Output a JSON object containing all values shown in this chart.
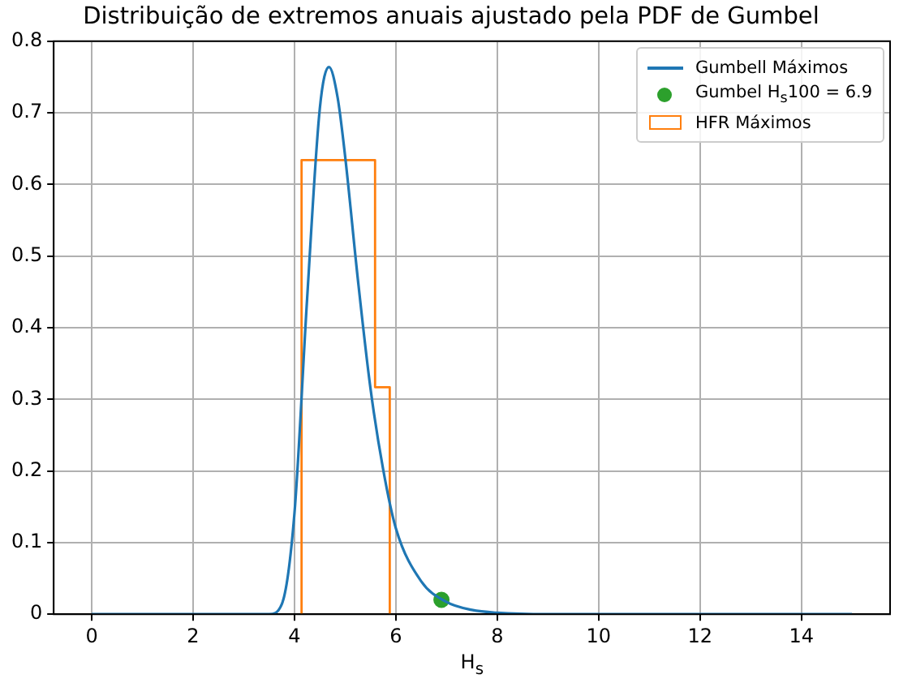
{
  "chart_data": {
    "type": "line",
    "title": "Distribuição de extremos anuais ajustado pela PDF de Gumbel",
    "xlabel": "H$_{s}$",
    "xlim": [
      -0.75,
      15.75
    ],
    "xticks": [
      0,
      2,
      4,
      6,
      8,
      10,
      12,
      14
    ],
    "ylim": [
      0,
      0.8
    ],
    "yticks": [
      0.0,
      0.1,
      0.2,
      0.3,
      0.4,
      0.5,
      0.6,
      0.7,
      0.8
    ],
    "grid": true,
    "legend": "top right",
    "series": [
      {
        "type": "line",
        "name": "Gumbell Máximos",
        "color": "#1f77b4",
        "marker": "none",
        "line_style": "solid",
        "x": [
          0,
          3,
          3.5,
          3.75,
          4,
          4.25,
          4.5,
          4.68,
          4.85,
          5,
          5.25,
          5.5,
          5.75,
          6,
          6.5,
          7,
          7.5,
          8,
          9,
          10,
          15
        ],
        "values": [
          0,
          0,
          0,
          0.014,
          0.141,
          0.441,
          0.706,
          0.764,
          0.722,
          0.639,
          0.468,
          0.315,
          0.202,
          0.12,
          0.046,
          0.017,
          0.006,
          0.002,
          0,
          0,
          0
        ]
      },
      {
        "type": "scatter",
        "name": "Gumbel H$_{s}$100 = 6.9",
        "color": "#2ca02c",
        "marker": "circle",
        "x": [
          6.9
        ],
        "values": [
          0.02
        ]
      },
      {
        "type": "histogram",
        "name": "HFR Máximos",
        "color": "#ff7f0e",
        "bins": [
          4.14,
          5.59,
          5.88
        ],
        "values": [
          0.634,
          0.317
        ]
      }
    ]
  }
}
